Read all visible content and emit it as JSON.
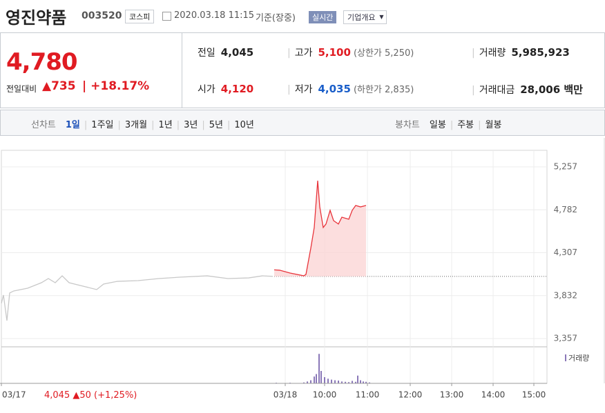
{
  "header": {
    "title": "영진약품",
    "code": "003520",
    "market": "코스피",
    "date": "2020.03.18 11:15",
    "basis": "기준(장중)",
    "realtime": "실시간",
    "overview": "기업개요"
  },
  "quote": {
    "price": "4,780",
    "change_label": "전일대비",
    "change": "735",
    "change_rate": "+18.17%",
    "rows": [
      [
        {
          "label": "전일",
          "value": "4,045"
        },
        {
          "label": "고가",
          "value": "5,100",
          "note": "(상한가 5,250)"
        },
        {
          "label": "거래량",
          "value": "5,985,923"
        }
      ],
      [
        {
          "label": "시가",
          "value": "4,120"
        },
        {
          "label": "저가",
          "value": "4,035",
          "note": "(하한가 2,835)"
        },
        {
          "label": "거래대금",
          "value": "28,006 백만"
        }
      ]
    ]
  },
  "tabs": {
    "line_label": "선차트",
    "line": [
      "1일",
      "1주일",
      "3개월",
      "1년",
      "3년",
      "5년",
      "10년"
    ],
    "candle_label": "봉차트",
    "candle": [
      "일봉",
      "주봉",
      "월봉"
    ]
  },
  "prev_day": {
    "close": "4,045",
    "change": "50",
    "rate": "(+1,25%)"
  },
  "chart_data": [
    {
      "type": "line",
      "xlim": [
        -5,
        785
      ],
      "ylim": [
        3357,
        5257
      ],
      "base": 4045,
      "yticks": [
        {
          "value": 3357,
          "label": "3,357"
        },
        {
          "value": 3832,
          "label": "3,832"
        },
        {
          "value": 4307,
          "label": "4,307"
        },
        {
          "value": 4782,
          "label": "4,782"
        },
        {
          "value": 5257,
          "label": "5,257"
        }
      ],
      "xticks": [
        {
          "value": -5,
          "label": "03/17"
        },
        {
          "value": 406,
          "label": "03/18"
        },
        {
          "value": 463,
          "label": "10:00"
        },
        {
          "value": 525,
          "label": "11:00"
        },
        {
          "value": 587,
          "label": "12:00"
        },
        {
          "value": 647,
          "label": "13:00"
        },
        {
          "value": 707,
          "label": "14:00"
        },
        {
          "value": 766,
          "label": "15:00"
        }
      ],
      "series": [
        {
          "color": "#c8c8c8",
          "x": [
            -5,
            -2,
            3,
            7,
            13,
            33,
            53,
            63,
            73,
            83,
            93,
            113,
            133,
            143,
            163,
            193,
            223,
            253,
            293,
            323,
            353,
            373,
            388
          ],
          "values": [
            3746,
            3838,
            3555,
            3861,
            3884,
            3914,
            3975,
            4021,
            3975,
            4051,
            3975,
            3937,
            3899,
            3960,
            3990,
            3998,
            4021,
            4036,
            4051,
            4021,
            4028,
            4051,
            4045
          ]
        },
        {
          "color": "#e8333a",
          "x": [
            390,
            398,
            413,
            433,
            436,
            443,
            448,
            453,
            456,
            461,
            465,
            471,
            476,
            483,
            488,
            498,
            503,
            508,
            515,
            523
          ],
          "values": [
            4117,
            4113,
            4082,
            4051,
            4067,
            4357,
            4586,
            5104,
            4814,
            4586,
            4624,
            4776,
            4662,
            4624,
            4700,
            4677,
            4776,
            4830,
            4814,
            4830
          ]
        }
      ]
    },
    {
      "type": "bar",
      "legend": "거래량",
      "color": "#8a78b8",
      "xlim": [
        -5,
        785
      ],
      "ylim": [
        0,
        100
      ],
      "x": [
        393,
        403,
        413,
        423,
        433,
        438,
        443,
        448,
        451,
        455,
        458,
        463,
        468,
        473,
        478,
        483,
        488,
        493,
        498,
        503,
        508,
        511,
        515,
        519,
        523,
        528
      ],
      "values": [
        2,
        1,
        2,
        1,
        3,
        6,
        10,
        22,
        30,
        95,
        40,
        20,
        15,
        12,
        10,
        9,
        6,
        5,
        4,
        8,
        5,
        25,
        10,
        6,
        5,
        3
      ]
    }
  ]
}
